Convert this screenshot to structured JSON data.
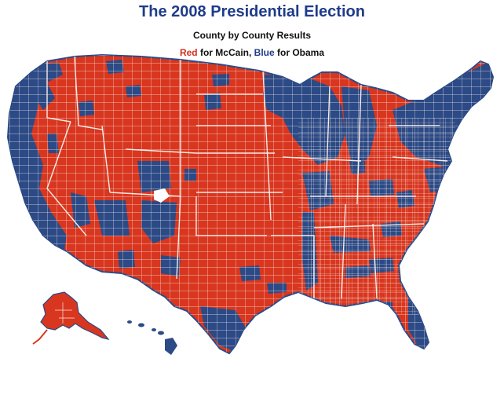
{
  "header": {
    "title": "The 2008 Presidential Election",
    "subtitle": "County by County Results",
    "legend": {
      "red_word": "Red",
      "red_text": " for McCain, ",
      "blue_word": "Blue",
      "blue_text": " for Obama"
    }
  },
  "colors": {
    "mccain_red": "#d9361f",
    "obama_blue": "#2b4a86",
    "border": "#f4e9e2",
    "title_blue": "#1f3b8a"
  },
  "map": {
    "regions": [
      "contiguous-us",
      "alaska",
      "hawaii"
    ]
  }
}
